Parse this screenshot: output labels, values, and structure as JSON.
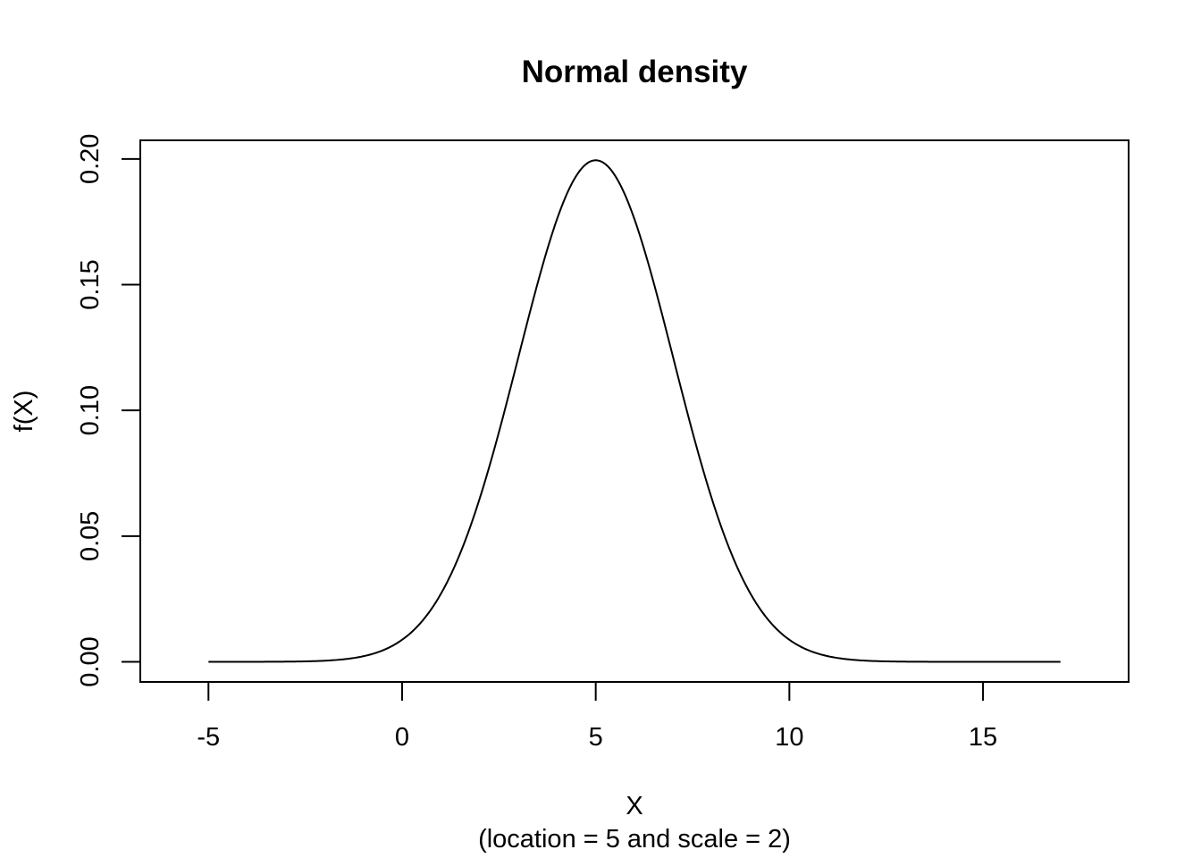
{
  "chart_data": {
    "type": "line",
    "title": "Normal density",
    "xlabel": "X",
    "xlabel_sub": "(location = 5 and scale = 2)",
    "ylabel": "f(X)",
    "xlim": [
      -6.76,
      18.76
    ],
    "ylim": [
      -0.008,
      0.2074
    ],
    "x_ticks": [
      -5,
      0,
      5,
      10,
      15
    ],
    "x_tick_labels": [
      "-5",
      "0",
      "5",
      "10",
      "15"
    ],
    "y_ticks": [
      0,
      0.05,
      0.1,
      0.15,
      0.2
    ],
    "y_tick_labels": [
      "0.00",
      "0.05",
      "0.10",
      "0.15",
      "0.20"
    ],
    "grid": false,
    "legend": "none",
    "line_color": "#000000",
    "series": [
      {
        "distribution": "normal",
        "location": 5,
        "scale": 2,
        "x_range": [
          -5,
          17
        ]
      }
    ]
  }
}
